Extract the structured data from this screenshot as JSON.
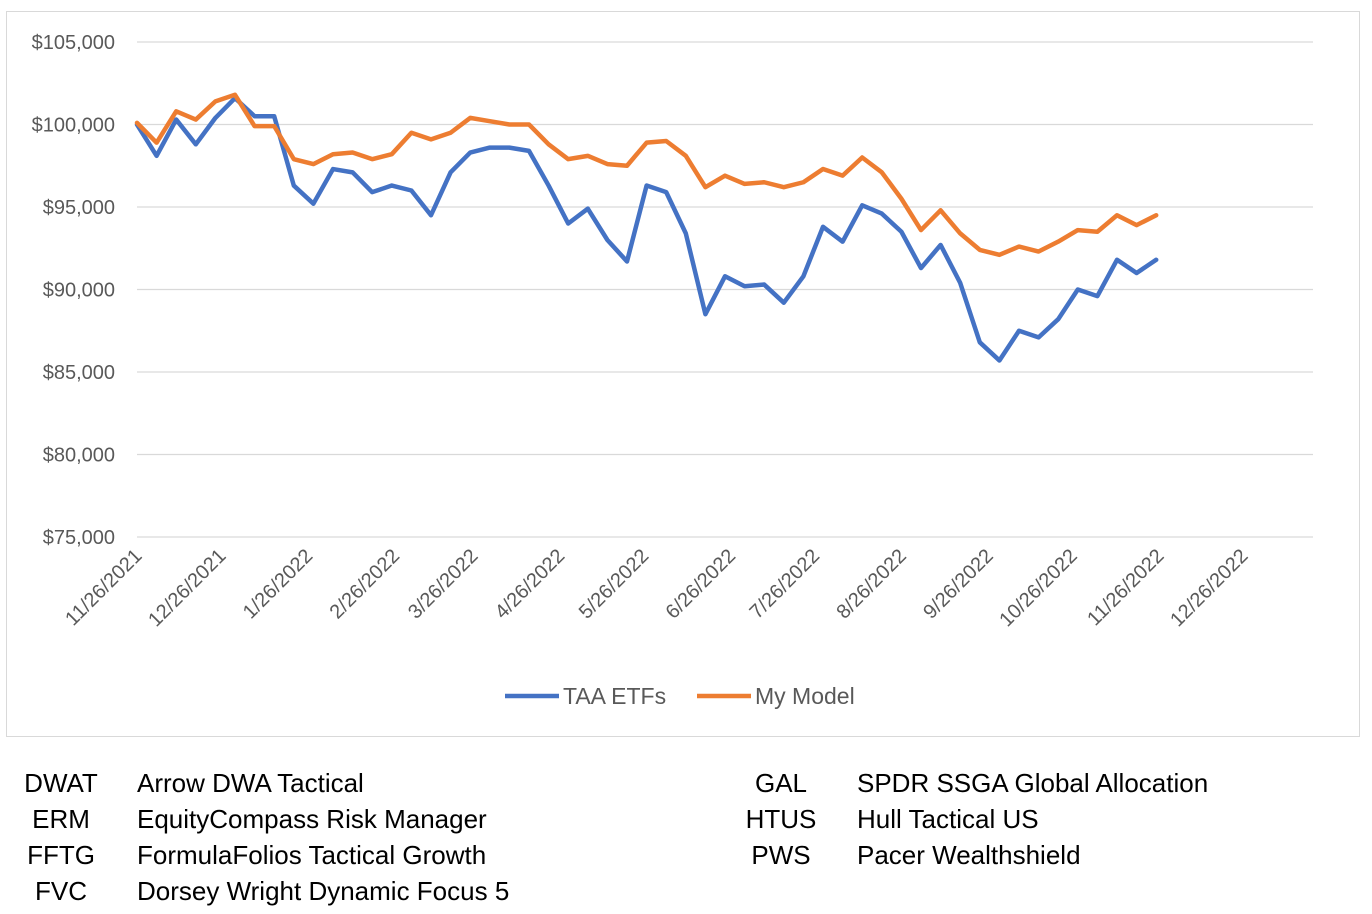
{
  "chart_data": {
    "type": "line",
    "title": "",
    "xlabel": "",
    "ylabel": "",
    "ylim": [
      75000,
      105000
    ],
    "y_ticks": [
      "$75,000",
      "$80,000",
      "$85,000",
      "$90,000",
      "$95,000",
      "$100,000",
      "$105,000"
    ],
    "y_tick_values": [
      75000,
      80000,
      85000,
      90000,
      95000,
      100000,
      105000
    ],
    "x_ticks": [
      "11/26/2021",
      "12/26/2021",
      "1/26/2022",
      "2/26/2022",
      "3/26/2022",
      "4/26/2022",
      "5/26/2022",
      "6/26/2022",
      "7/26/2022",
      "8/26/2022",
      "9/26/2022",
      "10/26/2022",
      "11/26/2022",
      "12/26/2022"
    ],
    "xlim": [
      "11/26/2021",
      "12/26/2022"
    ],
    "grid": true,
    "legend_position": "bottom",
    "series": [
      {
        "name": "TAA ETFs",
        "color": "#4472c4",
        "x": [
          "11/26/2021",
          "12/3/2021",
          "12/10/2021",
          "12/17/2021",
          "12/24/2021",
          "12/31/2021",
          "1/7/2022",
          "1/14/2022",
          "1/21/2022",
          "1/28/2022",
          "2/4/2022",
          "2/11/2022",
          "2/18/2022",
          "2/25/2022",
          "3/4/2022",
          "3/11/2022",
          "3/18/2022",
          "3/25/2022",
          "4/1/2022",
          "4/8/2022",
          "4/15/2022",
          "4/22/2022",
          "4/29/2022",
          "5/6/2022",
          "5/13/2022",
          "5/20/2022",
          "5/27/2022",
          "6/3/2022",
          "6/10/2022",
          "6/17/2022",
          "6/24/2022",
          "7/1/2022",
          "7/8/2022",
          "7/15/2022",
          "7/22/2022",
          "7/29/2022",
          "8/5/2022",
          "8/12/2022",
          "8/19/2022",
          "8/26/2022",
          "9/2/2022",
          "9/9/2022",
          "9/16/2022",
          "9/23/2022",
          "9/30/2022",
          "10/7/2022",
          "10/14/2022",
          "10/21/2022",
          "10/28/2022",
          "11/4/2022",
          "11/11/2022",
          "11/18/2022",
          "11/25/2022"
        ],
        "values": [
          100000,
          98100,
          100300,
          98800,
          100400,
          101600,
          100500,
          100500,
          96300,
          95200,
          97300,
          97100,
          95900,
          96300,
          96000,
          94500,
          97100,
          98300,
          98600,
          98600,
          98400,
          96300,
          94000,
          94900,
          93000,
          91700,
          96300,
          95900,
          93400,
          88500,
          90800,
          90200,
          90300,
          89200,
          90800,
          93800,
          92900,
          95100,
          94600,
          93500,
          91300,
          92700,
          90400,
          86800,
          85700,
          87500,
          87100,
          88200,
          90000,
          89600,
          91800,
          91000,
          91800
        ]
      },
      {
        "name": "My Model",
        "color": "#ed7d31",
        "x": [
          "11/26/2021",
          "12/3/2021",
          "12/10/2021",
          "12/17/2021",
          "12/24/2021",
          "12/31/2021",
          "1/7/2022",
          "1/14/2022",
          "1/21/2022",
          "1/28/2022",
          "2/4/2022",
          "2/11/2022",
          "2/18/2022",
          "2/25/2022",
          "3/4/2022",
          "3/11/2022",
          "3/18/2022",
          "3/25/2022",
          "4/1/2022",
          "4/8/2022",
          "4/15/2022",
          "4/22/2022",
          "4/29/2022",
          "5/6/2022",
          "5/13/2022",
          "5/20/2022",
          "5/27/2022",
          "6/3/2022",
          "6/10/2022",
          "6/17/2022",
          "6/24/2022",
          "7/1/2022",
          "7/8/2022",
          "7/15/2022",
          "7/22/2022",
          "7/29/2022",
          "8/5/2022",
          "8/12/2022",
          "8/19/2022",
          "8/26/2022",
          "9/2/2022",
          "9/9/2022",
          "9/16/2022",
          "9/23/2022",
          "9/30/2022",
          "10/7/2022",
          "10/14/2022",
          "10/21/2022",
          "10/28/2022",
          "11/4/2022",
          "11/11/2022",
          "11/18/2022",
          "11/25/2022"
        ],
        "values": [
          100100,
          98900,
          100800,
          100300,
          101400,
          101800,
          99900,
          99900,
          97900,
          97600,
          98200,
          98300,
          97900,
          98200,
          99500,
          99100,
          99500,
          100400,
          100200,
          100000,
          100000,
          98800,
          97900,
          98100,
          97600,
          97500,
          98900,
          99000,
          98100,
          96200,
          96900,
          96400,
          96500,
          96200,
          96500,
          97300,
          96900,
          98000,
          97100,
          95500,
          93600,
          94800,
          93400,
          92400,
          92100,
          92600,
          92300,
          92900,
          93600,
          93500,
          94500,
          93900,
          94500
        ]
      }
    ]
  },
  "key_table": {
    "left": [
      {
        "symbol": "DWAT",
        "name": "Arrow DWA Tactical"
      },
      {
        "symbol": "ERM",
        "name": "EquityCompass Risk Manager"
      },
      {
        "symbol": "FFTG",
        "name": "FormulaFolios Tactical Growth"
      },
      {
        "symbol": "FVC",
        "name": "Dorsey Wright Dynamic Focus 5"
      }
    ],
    "right": [
      {
        "symbol": "GAL",
        "name": "SPDR SSGA Global Allocation"
      },
      {
        "symbol": "HTUS",
        "name": "Hull Tactical US"
      },
      {
        "symbol": "PWS",
        "name": "Pacer Wealthshield"
      }
    ]
  }
}
